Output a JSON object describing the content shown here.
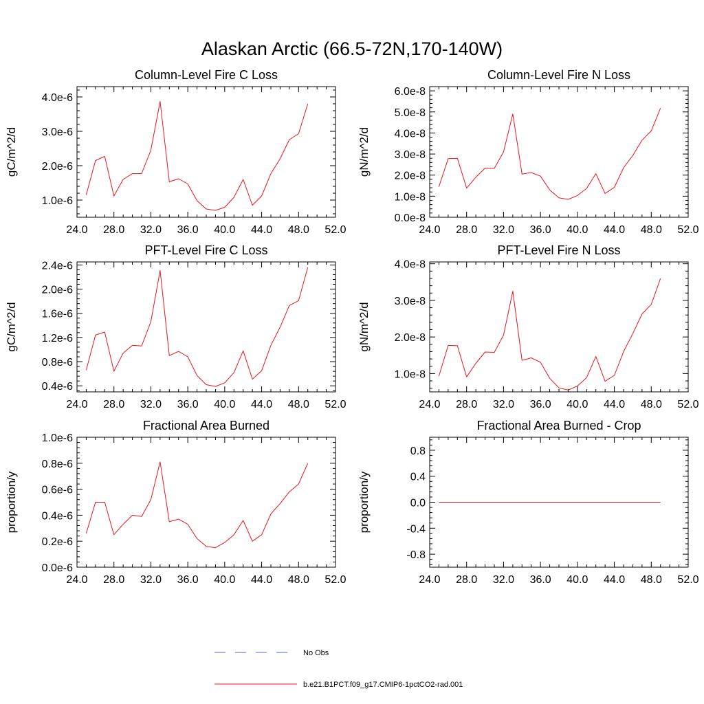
{
  "figure": {
    "title": "Alaskan Arctic (66.5-72N,170-140W)"
  },
  "legend": {
    "placement": "bottom-center",
    "items": [
      {
        "label": "No Obs",
        "color": "#5566cc",
        "dashed": true
      },
      {
        "label": "b.e21.B1PCT.f09_g17.CMIP6-1pctCO2-rad.001",
        "color": "#e8141e",
        "dashed": false
      }
    ]
  },
  "chart_data": [
    {
      "id": "column-c",
      "type": "line",
      "title": "Column-Level Fire C Loss",
      "ylabel": "gC/m^2/d",
      "xlim": [
        24,
        52
      ],
      "ylim": [
        5e-07,
        4.3e-06
      ],
      "xticks": [
        24,
        28,
        32,
        36,
        40,
        44,
        48,
        52
      ],
      "xticklabels": [
        "24.0",
        "28.0",
        "32.0",
        "36.0",
        "40.0",
        "44.0",
        "48.0",
        "52.0"
      ],
      "yticks": [
        1e-06,
        2e-06,
        3e-06,
        4e-06
      ],
      "yticklabels": [
        "1.0e-6",
        "2.0e-6",
        "3.0e-6",
        "4.0e-6"
      ],
      "series": [
        {
          "color": "#e8141e",
          "x": [
            25,
            26,
            27,
            28,
            29,
            30,
            31,
            32,
            33,
            34,
            35,
            36,
            37,
            38,
            39,
            40,
            41,
            42,
            43,
            44,
            45,
            46,
            47,
            48,
            49
          ],
          "y": [
            1.15e-06,
            2.15e-06,
            2.27e-06,
            1.12e-06,
            1.6e-06,
            1.77e-06,
            1.77e-06,
            2.45e-06,
            3.87e-06,
            1.53e-06,
            1.62e-06,
            1.47e-06,
            9.8e-07,
            7.4e-07,
            7e-07,
            7.9e-07,
            1.08e-06,
            1.6e-06,
            8.5e-07,
            1.12e-06,
            1.77e-06,
            2.2e-06,
            2.76e-06,
            2.93e-06,
            3.8e-06
          ]
        }
      ]
    },
    {
      "id": "column-n",
      "type": "line",
      "title": "Column-Level Fire N Loss",
      "ylabel": "gN/m^2/d",
      "xlim": [
        24,
        52
      ],
      "ylim": [
        0,
        6.2e-08
      ],
      "xticks": [
        24,
        28,
        32,
        36,
        40,
        44,
        48,
        52
      ],
      "xticklabels": [
        "24.0",
        "28.0",
        "32.0",
        "36.0",
        "40.0",
        "44.0",
        "48.0",
        "52.0"
      ],
      "yticks": [
        0,
        1e-08,
        2e-08,
        3e-08,
        4e-08,
        5e-08,
        6e-08
      ],
      "yticklabels": [
        "0.0e-8",
        "1.0e-8",
        "2.0e-8",
        "3.0e-8",
        "4.0e-8",
        "5.0e-8",
        "6.0e-8"
      ],
      "series": [
        {
          "color": "#e8141e",
          "x": [
            25,
            26,
            27,
            28,
            29,
            30,
            31,
            32,
            33,
            34,
            35,
            36,
            37,
            38,
            39,
            40,
            41,
            42,
            43,
            44,
            45,
            46,
            47,
            48,
            49
          ],
          "y": [
            1.45e-08,
            2.78e-08,
            2.8e-08,
            1.38e-08,
            1.9e-08,
            2.33e-08,
            2.32e-08,
            3.1e-08,
            4.9e-08,
            2.05e-08,
            2.12e-08,
            1.95e-08,
            1.3e-08,
            9.2e-09,
            8.5e-09,
            1.03e-08,
            1.37e-08,
            2.07e-08,
            1.13e-08,
            1.42e-08,
            2.35e-08,
            2.93e-08,
            3.66e-08,
            4.1e-08,
            5.18e-08
          ]
        }
      ]
    },
    {
      "id": "pft-c",
      "type": "line",
      "title": "PFT-Level Fire C Loss",
      "ylabel": "gC/m^2/d",
      "xlim": [
        24,
        52
      ],
      "ylim": [
        3e-07,
        2.45e-06
      ],
      "xticks": [
        24,
        28,
        32,
        36,
        40,
        44,
        48,
        52
      ],
      "xticklabels": [
        "24.0",
        "28.0",
        "32.0",
        "36.0",
        "40.0",
        "44.0",
        "48.0",
        "52.0"
      ],
      "yticks": [
        4e-07,
        8e-07,
        1.2e-06,
        1.6e-06,
        2e-06,
        2.4e-06
      ],
      "yticklabels": [
        "0.4e-6",
        "0.8e-6",
        "1.2e-6",
        "1.6e-6",
        "2.0e-6",
        "2.4e-6"
      ],
      "series": [
        {
          "color": "#e8141e",
          "x": [
            25,
            26,
            27,
            28,
            29,
            30,
            31,
            32,
            33,
            34,
            35,
            36,
            37,
            38,
            39,
            40,
            41,
            42,
            43,
            44,
            45,
            46,
            47,
            48,
            49
          ],
          "y": [
            6.6e-07,
            1.24e-06,
            1.29e-06,
            6.4e-07,
            9.4e-07,
            1.07e-06,
            1.06e-06,
            1.46e-06,
            2.31e-06,
            9e-07,
            9.7e-07,
            8.8e-07,
            5.7e-07,
            4.2e-07,
            3.9e-07,
            4.5e-07,
            6.2e-07,
            9.8e-07,
            5.1e-07,
            6.5e-07,
            1.07e-06,
            1.37e-06,
            1.73e-06,
            1.81e-06,
            2.36e-06
          ]
        }
      ]
    },
    {
      "id": "pft-n",
      "type": "line",
      "title": "PFT-Level Fire N Loss",
      "ylabel": "gN/m^2/d",
      "xlim": [
        24,
        52
      ],
      "ylim": [
        5e-09,
        4.05e-08
      ],
      "xticks": [
        24,
        28,
        32,
        36,
        40,
        44,
        48,
        52
      ],
      "xticklabels": [
        "24.0",
        "28.0",
        "32.0",
        "36.0",
        "40.0",
        "44.0",
        "48.0",
        "52.0"
      ],
      "yticks": [
        1e-08,
        2e-08,
        3e-08,
        4e-08
      ],
      "yticklabels": [
        "1.0e-8",
        "2.0e-8",
        "3.0e-8",
        "4.0e-8"
      ],
      "series": [
        {
          "color": "#e8141e",
          "x": [
            25,
            26,
            27,
            28,
            29,
            30,
            31,
            32,
            33,
            34,
            35,
            36,
            37,
            38,
            39,
            40,
            41,
            42,
            43,
            44,
            45,
            46,
            47,
            48,
            49
          ],
          "y": [
            9.3e-09,
            1.77e-08,
            1.76e-08,
            9.1e-09,
            1.28e-08,
            1.59e-08,
            1.58e-08,
            2.05e-08,
            3.25e-08,
            1.36e-08,
            1.43e-08,
            1.31e-08,
            8.7e-09,
            6.1e-09,
            5.5e-09,
            6.6e-09,
            8.9e-09,
            1.47e-08,
            7.9e-09,
            9.5e-09,
            1.6e-08,
            2.09e-08,
            2.63e-08,
            2.89e-08,
            3.6e-08
          ]
        }
      ]
    },
    {
      "id": "area-burned",
      "type": "line",
      "title": "Fractional Area Burned",
      "ylabel": "proportion/y",
      "xlim": [
        24,
        52
      ],
      "ylim": [
        0,
        1e-06
      ],
      "xticks": [
        24,
        28,
        32,
        36,
        40,
        44,
        48,
        52
      ],
      "xticklabels": [
        "24.0",
        "28.0",
        "32.0",
        "36.0",
        "40.0",
        "44.0",
        "48.0",
        "52.0"
      ],
      "yticks": [
        0,
        2e-07,
        4e-07,
        6e-07,
        8e-07,
        1e-06
      ],
      "yticklabels": [
        "0.0e-6",
        "0.2e-6",
        "0.4e-6",
        "0.6e-6",
        "0.8e-6",
        "1.0e-6"
      ],
      "series": [
        {
          "color": "#e8141e",
          "x": [
            25,
            26,
            27,
            28,
            29,
            30,
            31,
            32,
            33,
            34,
            35,
            36,
            37,
            38,
            39,
            40,
            41,
            42,
            43,
            44,
            45,
            46,
            47,
            48,
            49
          ],
          "y": [
            2.6e-07,
            5e-07,
            5e-07,
            2.5e-07,
            3.3e-07,
            4e-07,
            3.9e-07,
            5.2e-07,
            8.1e-07,
            3.5e-07,
            3.7e-07,
            3.3e-07,
            2.2e-07,
            1.6e-07,
            1.5e-07,
            1.9e-07,
            2.5e-07,
            3.6e-07,
            2e-07,
            2.5e-07,
            4.1e-07,
            4.9e-07,
            5.8e-07,
            6.4e-07,
            8e-07
          ]
        }
      ]
    },
    {
      "id": "area-burned-crop",
      "type": "line",
      "title": "Fractional Area Burned - Crop",
      "ylabel": "proportion/y",
      "xlim": [
        24,
        52
      ],
      "ylim": [
        -1.0,
        1.0
      ],
      "xticks": [
        24,
        28,
        32,
        36,
        40,
        44,
        48,
        52
      ],
      "xticklabels": [
        "24.0",
        "28.0",
        "32.0",
        "36.0",
        "40.0",
        "44.0",
        "48.0",
        "52.0"
      ],
      "yticks": [
        -0.8,
        -0.4,
        0,
        0.4,
        0.8
      ],
      "yticklabels": [
        "-0.8",
        "-0.4",
        "0.0",
        "0.4",
        "0.8"
      ],
      "series": [
        {
          "color": "#e8141e",
          "x": [
            25,
            26,
            27,
            28,
            29,
            30,
            31,
            32,
            33,
            34,
            35,
            36,
            37,
            38,
            39,
            40,
            41,
            42,
            43,
            44,
            45,
            46,
            47,
            48,
            49
          ],
          "y": [
            0,
            0,
            0,
            0,
            0,
            0,
            0,
            0,
            0,
            0,
            0,
            0,
            0,
            0,
            0,
            0,
            0,
            0,
            0,
            0,
            0,
            0,
            0,
            0,
            0
          ]
        }
      ]
    }
  ]
}
